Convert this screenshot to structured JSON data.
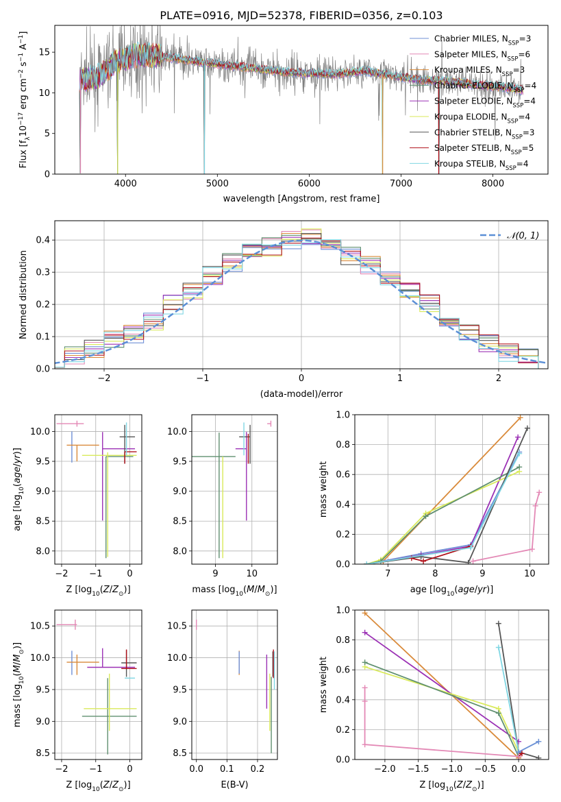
{
  "figure": {
    "title": "PLATE=0916, MJD=52378, FIBERID=0356, z=0.103"
  },
  "colors": {
    "Chabrier MILES": "#6f8fd6",
    "Salpeter MILES": "#e388b5",
    "Kroupa MILES": "#d98a3a",
    "Chabrier ELODIE": "#5f8f6f",
    "Salpeter ELODIE": "#9b30b5",
    "Kroupa ELODIE": "#d9ea5a",
    "Chabrier STELIB": "#555555",
    "Salpeter STELIB": "#b0101a",
    "Kroupa STELIB": "#7fd6e3",
    "normal": "#5b8fd6",
    "data": "#7f7f7f"
  },
  "chart_data": [
    {
      "id": "spectrum",
      "type": "line",
      "xlabel": "wavelength [Angstrom, rest frame]",
      "ylabel_parts": {
        "a": "Flux [f",
        "sub": "λ",
        "b": "10",
        "sup1": "−17",
        "c": " erg cm",
        "sup2": "−2",
        "d": " s",
        "sup3": "−1",
        "e": " A",
        "sup4": "−1",
        "f": "]"
      },
      "xlim": [
        3230,
        8600
      ],
      "ylim": [
        0,
        18.3
      ],
      "xticks": [
        4000,
        5000,
        6000,
        7000,
        8000
      ],
      "yticks": [
        0,
        5,
        10,
        15
      ],
      "continuum": {
        "x": [
          3500,
          3700,
          3900,
          4100,
          4300,
          4500,
          4800,
          5100,
          5400,
          5700,
          6000,
          6300,
          6600,
          6900,
          7200,
          7500,
          7800,
          8100,
          8330
        ],
        "y": [
          11.6,
          11.9,
          13.8,
          14.6,
          14.6,
          14.3,
          13.8,
          13.4,
          13.0,
          12.6,
          12.4,
          12.3,
          12.7,
          12.1,
          11.6,
          11.4,
          11.0,
          10.7,
          10.3
        ]
      },
      "dips": [
        {
          "x": 3510,
          "y": 0.1
        },
        {
          "x": 3915,
          "y": 0.0
        },
        {
          "x": 4860,
          "y": 0.0
        },
        {
          "x": 6800,
          "y": 0.0
        },
        {
          "x": 7410,
          "y": 0.0
        }
      ],
      "legend": [
        {
          "label": "Chabrier MILES",
          "n": "3"
        },
        {
          "label": "Salpeter MILES",
          "n": "6"
        },
        {
          "label": "Kroupa MILES",
          "n": "3"
        },
        {
          "label": "Chabrier ELODIE",
          "n": "4"
        },
        {
          "label": "Salpeter ELODIE",
          "n": "4"
        },
        {
          "label": "Kroupa ELODIE",
          "n": "4"
        },
        {
          "label": "Chabrier STELIB",
          "n": "3"
        },
        {
          "label": "Salpeter STELIB",
          "n": "5"
        },
        {
          "label": "Kroupa STELIB",
          "n": "4"
        }
      ],
      "legend_n_label": "N",
      "legend_n_sub": "SSP"
    },
    {
      "id": "residuals",
      "type": "histogram",
      "xlabel": "(data-model)/error",
      "ylabel": "Normed distribution",
      "xlim": [
        -2.5,
        2.5
      ],
      "ylim": [
        0,
        0.46
      ],
      "xticks": [
        -2,
        -1,
        0,
        1,
        2
      ],
      "yticks": [
        0.0,
        0.1,
        0.2,
        0.3,
        0.4
      ],
      "bin_edges": [
        -2.6,
        -2.4,
        -2.2,
        -2.0,
        -1.8,
        -1.6,
        -1.4,
        -1.2,
        -1.0,
        -0.8,
        -0.6,
        -0.4,
        -0.2,
        0.0,
        0.2,
        0.4,
        0.6,
        0.8,
        1.0,
        1.2,
        1.4,
        1.6,
        1.8,
        2.0,
        2.2,
        2.4
      ],
      "base_density": [
        0.035,
        0.04,
        0.06,
        0.09,
        0.11,
        0.15,
        0.2,
        0.24,
        0.29,
        0.33,
        0.36,
        0.38,
        0.4,
        0.41,
        0.38,
        0.35,
        0.32,
        0.28,
        0.24,
        0.2,
        0.15,
        0.11,
        0.08,
        0.05,
        0.035
      ],
      "normal_curve": {
        "label": "𝒩(0, 1)",
        "mu": 0,
        "sigma": 1
      }
    },
    {
      "id": "age_vs_Z",
      "type": "errorbar",
      "xlabel": "Z [log10(Z/Z⊙)]",
      "ylabel": "age  [log10(age/yr)]",
      "xlim": [
        -2.2,
        0.35
      ],
      "ylim": [
        7.78,
        10.28
      ],
      "xticks": [
        -2,
        -1,
        0
      ],
      "yticks": [
        8.0,
        8.5,
        9.0,
        9.5,
        10.0
      ],
      "points": [
        {
          "series": "Chabrier MILES",
          "x": -1.7,
          "xerr": [
            0,
            0
          ],
          "y": 9.78,
          "yerr": [
            0.3,
            0.22
          ]
        },
        {
          "series": "Salpeter MILES",
          "x": -1.55,
          "xerr": [
            0.6,
            0.2
          ],
          "y": 10.13,
          "yerr": [
            0.05,
            0.05
          ]
        },
        {
          "series": "Kroupa MILES",
          "x": -1.55,
          "xerr": [
            0.3,
            0.65
          ],
          "y": 9.77,
          "yerr": [
            0.27,
            0.0
          ]
        },
        {
          "series": "Chabrier ELODIE",
          "x": -0.7,
          "xerr": [
            0.0,
            0.8
          ],
          "y": 9.58,
          "yerr": [
            1.7,
            0.0
          ]
        },
        {
          "series": "Salpeter ELODIE",
          "x": -0.8,
          "xerr": [
            0.0,
            0.95
          ],
          "y": 9.71,
          "yerr": [
            1.2,
            0.28
          ]
        },
        {
          "series": "Kroupa ELODIE",
          "x": -0.65,
          "xerr": [
            0.75,
            0.85
          ],
          "y": 9.6,
          "yerr": [
            1.7,
            0.05
          ]
        },
        {
          "series": "Chabrier STELIB",
          "x": -0.15,
          "xerr": [
            0.15,
            0.3
          ],
          "y": 9.91,
          "yerr": [
            0.45,
            0.2
          ]
        },
        {
          "series": "Salpeter STELIB",
          "x": -0.15,
          "xerr": [
            0.0,
            0.35
          ],
          "y": 9.66,
          "yerr": [
            0.2,
            0.0
          ]
        },
        {
          "series": "Kroupa STELIB",
          "x": -0.1,
          "xerr": [
            0.0,
            0.0
          ],
          "y": 9.8,
          "yerr": [
            0.2,
            0.35
          ]
        }
      ]
    },
    {
      "id": "age_vs_mass",
      "type": "errorbar",
      "xlabel": "mass [log10(M/M⊙)]",
      "ylabel": "",
      "xlim": [
        8.35,
        10.7
      ],
      "ylim": [
        7.78,
        10.28
      ],
      "xticks": [
        9,
        10
      ],
      "yticks": [
        8.0,
        8.5,
        9.0,
        9.5,
        10.0
      ],
      "points": [
        {
          "series": "Salpeter MILES",
          "x": 10.52,
          "xerr": [
            0.1,
            0.0
          ],
          "y": 10.13,
          "yerr": [
            0.05,
            0.05
          ]
        },
        {
          "series": "Chabrier ELODIE",
          "x": 9.1,
          "xerr": [
            0.75,
            0.45
          ],
          "y": 9.58,
          "yerr": [
            1.7,
            0.4
          ]
        },
        {
          "series": "Kroupa ELODIE",
          "x": 9.2,
          "xerr": [
            0.0,
            0.0
          ],
          "y": 9.58,
          "yerr": [
            1.7,
            0.0
          ]
        },
        {
          "series": "Salpeter ELODIE",
          "x": 9.85,
          "xerr": [
            0.3,
            0.0
          ],
          "y": 9.71,
          "yerr": [
            1.2,
            0.28
          ]
        },
        {
          "series": "Chabrier STELIB",
          "x": 9.95,
          "xerr": [
            0.3,
            0.0
          ],
          "y": 9.91,
          "yerr": [
            0.45,
            0.2
          ]
        },
        {
          "series": "Salpeter STELIB",
          "x": 9.9,
          "xerr": [
            0.0,
            0.0
          ],
          "y": 9.66,
          "yerr": [
            0.2,
            0.3
          ]
        },
        {
          "series": "Kroupa STELIB",
          "x": 9.78,
          "xerr": [
            0.0,
            0.0
          ],
          "y": 9.8,
          "yerr": [
            0.2,
            0.35
          ]
        }
      ]
    },
    {
      "id": "massweight_vs_age",
      "type": "line",
      "xlabel": "age  [log10(age/yr)]",
      "ylabel": "mass weight",
      "xlim": [
        6.3,
        10.4
      ],
      "ylim": [
        0,
        1
      ],
      "xticks": [
        7,
        8,
        9,
        10
      ],
      "yticks": [
        0.0,
        0.2,
        0.4,
        0.6,
        0.8,
        1.0
      ],
      "series": [
        {
          "name": "Kroupa MILES",
          "x": [
            6.55,
            6.9,
            9.8
          ],
          "y": [
            0.0,
            0.02,
            0.98
          ]
        },
        {
          "name": "Chabrier MILES",
          "x": [
            6.55,
            7.7,
            8.75,
            9.78
          ],
          "y": [
            0.0,
            0.07,
            0.13,
            0.75
          ]
        },
        {
          "name": "Salpeter ELODIE",
          "x": [
            6.55,
            7.7,
            8.75,
            9.75
          ],
          "y": [
            0.0,
            0.06,
            0.12,
            0.85
          ]
        },
        {
          "name": "Kroupa ELODIE",
          "x": [
            6.55,
            6.85,
            7.8,
            9.78
          ],
          "y": [
            0.0,
            0.03,
            0.34,
            0.62
          ]
        },
        {
          "name": "Chabrier ELODIE",
          "x": [
            6.55,
            6.85,
            7.8,
            9.78
          ],
          "y": [
            0.0,
            0.02,
            0.32,
            0.65
          ]
        },
        {
          "name": "Chabrier STELIB",
          "x": [
            6.55,
            7.7,
            8.7,
            9.95
          ],
          "y": [
            0.0,
            0.05,
            0.01,
            0.91
          ]
        },
        {
          "name": "Salpeter STELIB",
          "x": [
            7.5,
            7.75,
            8.75
          ],
          "y": [
            0.04,
            0.02,
            0.12
          ]
        },
        {
          "name": "Kroupa STELIB",
          "x": [
            6.55,
            8.75,
            9.78
          ],
          "y": [
            0.0,
            0.11,
            0.74
          ]
        },
        {
          "name": "Salpeter MILES",
          "x": [
            8.8,
            10.05,
            10.12,
            10.2
          ],
          "y": [
            0.02,
            0.1,
            0.39,
            0.48
          ]
        }
      ]
    },
    {
      "id": "mass_vs_Z",
      "type": "errorbar",
      "xlabel": "Z [log10(Z/Z⊙)]",
      "ylabel": "mass [log10(M/M⊙)]",
      "xlim": [
        -2.2,
        0.35
      ],
      "ylim": [
        8.4,
        10.75
      ],
      "xticks": [
        -2,
        -1,
        0
      ],
      "yticks": [
        8.5,
        9.0,
        9.5,
        10.0,
        10.5
      ],
      "points": [
        {
          "series": "Salpeter MILES",
          "x": -1.6,
          "xerr": [
            0.55,
            0.05
          ],
          "y": 10.52,
          "yerr": [
            0.08,
            0.08
          ]
        },
        {
          "series": "Chabrier MILES",
          "x": -1.7,
          "xerr": [
            0.0,
            0.0
          ],
          "y": 9.93,
          "yerr": [
            0.2,
            0.18
          ]
        },
        {
          "series": "Kroupa MILES",
          "x": -1.55,
          "xerr": [
            0.3,
            0.65
          ],
          "y": 9.93,
          "yerr": [
            0.2,
            0.12
          ]
        },
        {
          "series": "Chabrier ELODIE",
          "x": -0.65,
          "xerr": [
            0.75,
            0.85
          ],
          "y": 9.08,
          "yerr": [
            0.6,
            0.6
          ]
        },
        {
          "series": "Kroupa ELODIE",
          "x": -0.6,
          "xerr": [
            0.75,
            0.8
          ],
          "y": 9.2,
          "yerr": [
            0.35,
            0.55
          ]
        },
        {
          "series": "Salpeter ELODIE",
          "x": -0.8,
          "xerr": [
            0.45,
            0.95
          ],
          "y": 9.85,
          "yerr": [
            0.0,
            0.3
          ]
        },
        {
          "series": "Chabrier STELIB",
          "x": -0.1,
          "xerr": [
            0.15,
            0.3
          ],
          "y": 9.92,
          "yerr": [
            0.22,
            0.2
          ]
        },
        {
          "series": "Salpeter STELIB",
          "x": -0.1,
          "xerr": [
            0.15,
            0.3
          ],
          "y": 9.83,
          "yerr": [
            0.0,
            0.3
          ]
        },
        {
          "series": "Kroupa STELIB",
          "x": 0.0,
          "xerr": [
            0.15,
            0.15
          ],
          "y": 9.68,
          "yerr": [
            0.0,
            0.0
          ]
        }
      ]
    },
    {
      "id": "mass_vs_EBV",
      "type": "errorbar",
      "xlabel": "E(B-V)",
      "ylabel": "",
      "xlim": [
        -0.015,
        0.265
      ],
      "ylim": [
        8.4,
        10.75
      ],
      "xticks": [
        0.0,
        0.1,
        0.2
      ],
      "yticks": [
        8.5,
        9.0,
        9.5,
        10.0,
        10.5
      ],
      "points": [
        {
          "series": "Salpeter MILES",
          "x": 0.0,
          "xerr": [
            0,
            0
          ],
          "y": 10.52,
          "yerr": [
            0.08,
            0.08
          ]
        },
        {
          "series": "Kroupa MILES",
          "x": 0.14,
          "xerr": [
            0,
            0
          ],
          "y": 9.93,
          "yerr": [
            0.2,
            0.18
          ]
        },
        {
          "series": "Chabrier MILES",
          "x": 0.14,
          "xerr": [
            0,
            0
          ],
          "y": 9.9,
          "yerr": [
            0.15,
            0.2
          ]
        },
        {
          "series": "Salpeter ELODIE",
          "x": 0.23,
          "xerr": [
            0,
            0
          ],
          "y": 9.6,
          "yerr": [
            0.4,
            0.45
          ]
        },
        {
          "series": "Kroupa ELODIE",
          "x": 0.24,
          "xerr": [
            0,
            0
          ],
          "y": 9.2,
          "yerr": [
            0.35,
            0.55
          ]
        },
        {
          "series": "Chabrier ELODIE",
          "x": 0.245,
          "xerr": [
            0,
            0
          ],
          "y": 9.1,
          "yerr": [
            0.6,
            0.6
          ]
        },
        {
          "series": "Chabrier STELIB",
          "x": 0.25,
          "xerr": [
            0,
            0
          ],
          "y": 9.9,
          "yerr": [
            0.2,
            0.2
          ]
        },
        {
          "series": "Salpeter STELIB",
          "x": 0.252,
          "xerr": [
            0,
            0
          ],
          "y": 9.83,
          "yerr": [
            0.15,
            0.3
          ]
        },
        {
          "series": "Kroupa STELIB",
          "x": 0.255,
          "xerr": [
            0,
            0
          ],
          "y": 9.8,
          "yerr": [
            0.3,
            0.3
          ]
        }
      ]
    },
    {
      "id": "massweight_vs_Z",
      "type": "line",
      "xlabel": "Z [log10(Z/Z⊙)]",
      "ylabel": "mass weight",
      "xlim": [
        -2.45,
        0.45
      ],
      "ylim": [
        0,
        1
      ],
      "xticks": [
        -2.0,
        -1.5,
        -1.0,
        -0.5,
        0.0
      ],
      "yticks": [
        0.0,
        0.2,
        0.4,
        0.6,
        0.8,
        1.0
      ],
      "series": [
        {
          "name": "Kroupa MILES",
          "x": [
            -2.3,
            0.0
          ],
          "y": [
            0.98,
            0.01
          ]
        },
        {
          "name": "Salpeter ELODIE",
          "x": [
            -2.3,
            0.0
          ],
          "y": [
            0.85,
            0.12
          ]
        },
        {
          "name": "Kroupa ELODIE",
          "x": [
            -2.3,
            -0.3,
            0.0
          ],
          "y": [
            0.62,
            0.34,
            0.05
          ]
        },
        {
          "name": "Chabrier ELODIE",
          "x": [
            -2.3,
            -0.3,
            0.0
          ],
          "y": [
            0.65,
            0.31,
            0.02
          ]
        },
        {
          "name": "Chabrier STELIB",
          "x": [
            -0.3,
            0.0,
            0.3
          ],
          "y": [
            0.91,
            0.05,
            0.01
          ]
        },
        {
          "name": "Kroupa STELIB",
          "x": [
            -0.3,
            0.0,
            0.3
          ],
          "y": [
            0.75,
            0.05,
            0.12
          ]
        },
        {
          "name": "Chabrier MILES",
          "x": [
            0.0,
            0.3
          ],
          "y": [
            0.05,
            0.12
          ]
        },
        {
          "name": "Salpeter STELIB",
          "x": [
            0.0,
            0.05
          ],
          "y": [
            0.02,
            0.04
          ]
        },
        {
          "name": "Salpeter MILES",
          "x": [
            -2.3,
            -2.3,
            -2.3,
            0.0
          ],
          "y": [
            0.48,
            0.39,
            0.1,
            0.02
          ]
        }
      ]
    }
  ]
}
